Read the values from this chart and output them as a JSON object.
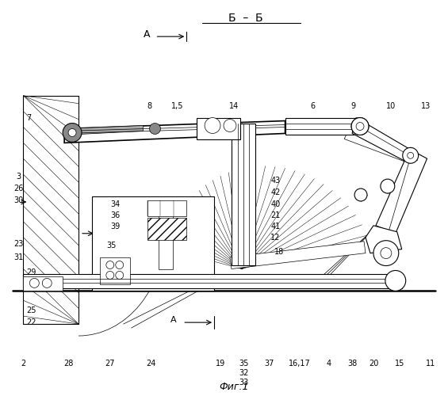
{
  "title": "Фиг.1",
  "section_label": "Б – Б",
  "background": "#ffffff",
  "fig_width": 5.65,
  "fig_height": 5.0,
  "dpi": 100
}
